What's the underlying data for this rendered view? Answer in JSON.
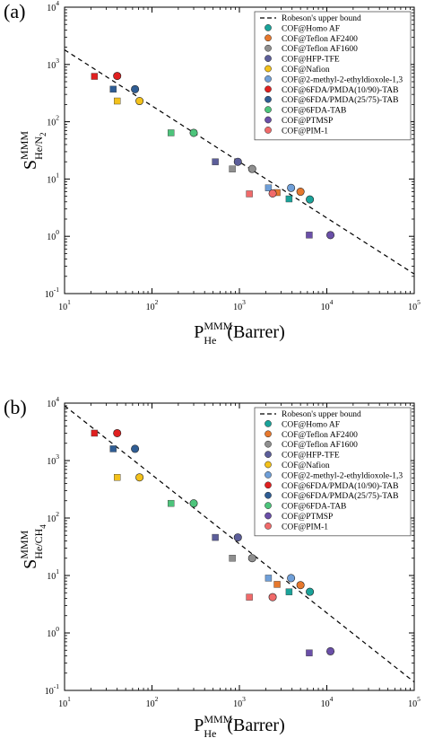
{
  "series_styles": [
    {
      "name": "COF@Homo AF",
      "color": "#1aa39a"
    },
    {
      "name": "COF@Teflon AF2400",
      "color": "#e6782d"
    },
    {
      "name": "COF@Teflon AF1600",
      "color": "#8f8f8f"
    },
    {
      "name": "COF@HFP-TFE",
      "color": "#5c5e9a"
    },
    {
      "name": "COF@Nafion",
      "color": "#f3c11b"
    },
    {
      "name": "COF@2-methyl-2-ethyldioxole-1,3",
      "color": "#6f9fd8"
    },
    {
      "name": "COF@6FDA/PMDA(10/90)-TAB",
      "color": "#e02020"
    },
    {
      "name": "COF@6FDA/PMDA(25/75)-TAB",
      "color": "#2f5d94"
    },
    {
      "name": "COF@6FDA-TAB",
      "color": "#4dc47b"
    },
    {
      "name": "COF@PTMSP",
      "color": "#6a4fa8"
    },
    {
      "name": "COF@PIM-1",
      "color": "#f06a6a"
    }
  ],
  "chart_data": [
    {
      "type": "scatter",
      "panel_label": "(a)",
      "xscale": "log",
      "yscale": "log",
      "xlim": [
        10,
        100000
      ],
      "ylim": [
        0.1,
        10000
      ],
      "x_ticks": [
        "10",
        "10",
        "10",
        "10",
        "10"
      ],
      "x_tick_exps": [
        "1",
        "2",
        "3",
        "4",
        "5"
      ],
      "y_ticks": [
        "10",
        "10",
        "10",
        "10",
        "10",
        "10"
      ],
      "y_tick_exps": [
        "-1",
        "0",
        "1",
        "2",
        "3",
        "4"
      ],
      "xlabel": {
        "main": "P",
        "sup": "MMM",
        "sub": "He",
        "tail": "(Barrer)"
      },
      "ylabel": {
        "main": "S",
        "sup": "MMM",
        "sub": "He/N",
        "sub2": "2"
      },
      "upper_bound": {
        "name": "Robeson's upper bound",
        "x": [
          10,
          100000
        ],
        "y": [
          1800,
          0.22
        ]
      },
      "series": [
        {
          "name": "COF@Homo AF",
          "points": [
            {
              "x": 3700,
              "y": 4.5,
              "m": "s"
            },
            {
              "x": 6400,
              "y": 4.4,
              "m": "o"
            }
          ]
        },
        {
          "name": "COF@Teflon AF2400",
          "points": [
            {
              "x": 2700,
              "y": 5.8,
              "m": "s"
            },
            {
              "x": 5000,
              "y": 6.0,
              "m": "o"
            }
          ]
        },
        {
          "name": "COF@Teflon AF1600",
          "points": [
            {
              "x": 830,
              "y": 15,
              "m": "s"
            },
            {
              "x": 1400,
              "y": 15,
              "m": "o"
            }
          ]
        },
        {
          "name": "COF@HFP-TFE",
          "points": [
            {
              "x": 530,
              "y": 20,
              "m": "s"
            },
            {
              "x": 960,
              "y": 20,
              "m": "o"
            }
          ]
        },
        {
          "name": "COF@Nafion",
          "points": [
            {
              "x": 40,
              "y": 230,
              "m": "s"
            },
            {
              "x": 72,
              "y": 230,
              "m": "o"
            }
          ]
        },
        {
          "name": "COF@2-methyl-2-ethyldioxole-1,3",
          "points": [
            {
              "x": 2150,
              "y": 7.0,
              "m": "s"
            },
            {
              "x": 3900,
              "y": 7.0,
              "m": "o"
            }
          ]
        },
        {
          "name": "COF@6FDA/PMDA(10/90)-TAB",
          "points": [
            {
              "x": 22,
              "y": 620,
              "m": "s"
            },
            {
              "x": 40,
              "y": 630,
              "m": "o"
            }
          ]
        },
        {
          "name": "COF@6FDA/PMDA(25/75)-TAB",
          "points": [
            {
              "x": 36,
              "y": 370,
              "m": "s"
            },
            {
              "x": 64,
              "y": 370,
              "m": "o"
            }
          ]
        },
        {
          "name": "COF@6FDA-TAB",
          "points": [
            {
              "x": 165,
              "y": 64,
              "m": "s"
            },
            {
              "x": 300,
              "y": 64,
              "m": "o"
            }
          ]
        },
        {
          "name": "COF@PTMSP",
          "points": [
            {
              "x": 6300,
              "y": 1.05,
              "m": "s"
            },
            {
              "x": 11000,
              "y": 1.05,
              "m": "o"
            }
          ]
        },
        {
          "name": "COF@PIM-1",
          "points": [
            {
              "x": 1300,
              "y": 5.5,
              "m": "s"
            },
            {
              "x": 2400,
              "y": 5.6,
              "m": "o"
            }
          ]
        }
      ]
    },
    {
      "type": "scatter",
      "panel_label": "(b)",
      "xscale": "log",
      "yscale": "log",
      "xlim": [
        10,
        100000
      ],
      "ylim": [
        0.1,
        10000
      ],
      "x_ticks": [
        "10",
        "10",
        "10",
        "10",
        "10"
      ],
      "x_tick_exps": [
        "1",
        "2",
        "3",
        "4",
        "5"
      ],
      "y_ticks": [
        "10",
        "10",
        "10",
        "10",
        "10",
        "10"
      ],
      "y_tick_exps": [
        "-1",
        "0",
        "1",
        "2",
        "3",
        "4"
      ],
      "xlabel": {
        "main": "P",
        "sup": "MMM",
        "sub": "He",
        "tail": "(Barrer)"
      },
      "ylabel": {
        "main": "S",
        "sup": "MMM",
        "sub": "He/CH",
        "sub2": "4"
      },
      "upper_bound": {
        "name": "Robeson's upper bound",
        "x": [
          10,
          100000
        ],
        "y": [
          9000,
          0.14
        ]
      },
      "series": [
        {
          "name": "COF@Homo AF",
          "points": [
            {
              "x": 3700,
              "y": 5.2,
              "m": "s"
            },
            {
              "x": 6400,
              "y": 5.2,
              "m": "o"
            }
          ]
        },
        {
          "name": "COF@Teflon AF2400",
          "points": [
            {
              "x": 2700,
              "y": 7.0,
              "m": "s"
            },
            {
              "x": 5000,
              "y": 6.8,
              "m": "o"
            }
          ]
        },
        {
          "name": "COF@Teflon AF1600",
          "points": [
            {
              "x": 830,
              "y": 20,
              "m": "s"
            },
            {
              "x": 1400,
              "y": 20,
              "m": "o"
            }
          ]
        },
        {
          "name": "COF@HFP-TFE",
          "points": [
            {
              "x": 530,
              "y": 46,
              "m": "s"
            },
            {
              "x": 960,
              "y": 46,
              "m": "o"
            }
          ]
        },
        {
          "name": "COF@Nafion",
          "points": [
            {
              "x": 40,
              "y": 510,
              "m": "s"
            },
            {
              "x": 72,
              "y": 510,
              "m": "o"
            }
          ]
        },
        {
          "name": "COF@2-methyl-2-ethyldioxole-1,3",
          "points": [
            {
              "x": 2150,
              "y": 9.0,
              "m": "s"
            },
            {
              "x": 3900,
              "y": 9.0,
              "m": "o"
            }
          ]
        },
        {
          "name": "COF@6FDA/PMDA(10/90)-TAB",
          "points": [
            {
              "x": 22,
              "y": 3000,
              "m": "s"
            },
            {
              "x": 40,
              "y": 3000,
              "m": "o"
            }
          ]
        },
        {
          "name": "COF@6FDA/PMDA(25/75)-TAB",
          "points": [
            {
              "x": 36,
              "y": 1600,
              "m": "s"
            },
            {
              "x": 64,
              "y": 1600,
              "m": "o"
            }
          ]
        },
        {
          "name": "COF@6FDA-TAB",
          "points": [
            {
              "x": 165,
              "y": 180,
              "m": "s"
            },
            {
              "x": 300,
              "y": 180,
              "m": "o"
            }
          ]
        },
        {
          "name": "COF@PTMSP",
          "points": [
            {
              "x": 6300,
              "y": 0.45,
              "m": "s"
            },
            {
              "x": 11000,
              "y": 0.48,
              "m": "o"
            }
          ]
        },
        {
          "name": "COF@PIM-1",
          "points": [
            {
              "x": 1300,
              "y": 4.2,
              "m": "s"
            },
            {
              "x": 2400,
              "y": 4.2,
              "m": "o"
            }
          ]
        }
      ]
    }
  ]
}
